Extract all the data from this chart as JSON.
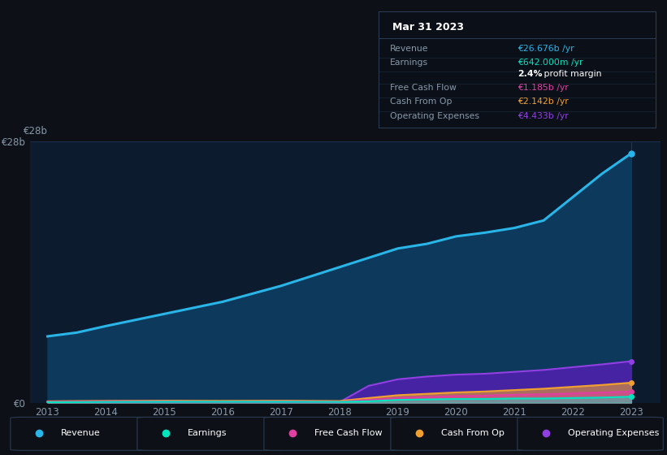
{
  "bg_color": "#0d1117",
  "chart_bg": "#0d1b2e",
  "grid_color": "#1e3050",
  "text_color": "#8899aa",
  "years": [
    2013,
    2013.5,
    2014,
    2015,
    2016,
    2017,
    2018,
    2018.5,
    2019,
    2019.5,
    2020,
    2020.5,
    2021,
    2021.5,
    2022,
    2022.5,
    2023
  ],
  "revenue": [
    7.1,
    7.5,
    8.2,
    9.5,
    10.8,
    12.5,
    14.5,
    15.5,
    16.5,
    17.0,
    17.8,
    18.2,
    18.7,
    19.5,
    22.0,
    24.5,
    26.676
  ],
  "earnings": [
    0.05,
    0.06,
    0.08,
    0.1,
    0.1,
    0.1,
    0.08,
    0.15,
    0.3,
    0.35,
    0.4,
    0.4,
    0.45,
    0.45,
    0.5,
    0.55,
    0.642
  ],
  "free_cash_flow": [
    0.1,
    0.12,
    0.15,
    0.15,
    0.12,
    0.15,
    0.1,
    0.3,
    0.5,
    0.6,
    0.7,
    0.75,
    0.85,
    0.9,
    1.0,
    1.1,
    1.185
  ],
  "cash_from_op": [
    0.15,
    0.18,
    0.2,
    0.22,
    0.2,
    0.22,
    0.18,
    0.5,
    0.8,
    0.95,
    1.1,
    1.2,
    1.35,
    1.5,
    1.7,
    1.9,
    2.142
  ],
  "op_expenses": [
    0.05,
    0.06,
    0.08,
    0.1,
    0.1,
    0.1,
    0.05,
    1.8,
    2.5,
    2.8,
    3.0,
    3.1,
    3.3,
    3.5,
    3.8,
    4.1,
    4.433
  ],
  "revenue_color": "#29b5e8",
  "revenue_fill": "#0d3a5c",
  "earnings_color": "#00e5c0",
  "earnings_fill": "#00e5c0",
  "fcf_color": "#e040a0",
  "fcf_fill": "#e040a0",
  "cfo_color": "#f0a030",
  "cfo_fill": "#f0a030",
  "opex_color": "#9040e0",
  "opex_fill": "#5020b0",
  "ylim": [
    0,
    28
  ],
  "xtick_years": [
    2013,
    2014,
    2015,
    2016,
    2017,
    2018,
    2019,
    2020,
    2021,
    2022,
    2023
  ],
  "tooltip_title": "Mar 31 2023",
  "tooltip_bg": "#0a0f18",
  "tooltip_border": "#2a3a50",
  "tooltip_items": [
    {
      "label": "Revenue",
      "value": "€26.676b /yr",
      "label_color": "#8899aa",
      "value_color": "#29b5e8"
    },
    {
      "label": "Earnings",
      "value": "€642.000m /yr",
      "label_color": "#8899aa",
      "value_color": "#00e5c0"
    },
    {
      "label": "",
      "value": "2.4% profit margin",
      "label_color": "#8899aa",
      "value_color": "#ffffff",
      "bold_part": "2.4%"
    },
    {
      "label": "Free Cash Flow",
      "value": "€1.185b /yr",
      "label_color": "#8899aa",
      "value_color": "#e040a0"
    },
    {
      "label": "Cash From Op",
      "value": "€2.142b /yr",
      "label_color": "#8899aa",
      "value_color": "#f0a030"
    },
    {
      "label": "Operating Expenses",
      "value": "€4.433b /yr",
      "label_color": "#8899aa",
      "value_color": "#9040e0"
    }
  ],
  "legend_items": [
    {
      "label": "Revenue",
      "color": "#29b5e8"
    },
    {
      "label": "Earnings",
      "color": "#00e5c0"
    },
    {
      "label": "Free Cash Flow",
      "color": "#e040a0"
    },
    {
      "label": "Cash From Op",
      "color": "#f0a030"
    },
    {
      "label": "Operating Expenses",
      "color": "#9040e0"
    }
  ]
}
